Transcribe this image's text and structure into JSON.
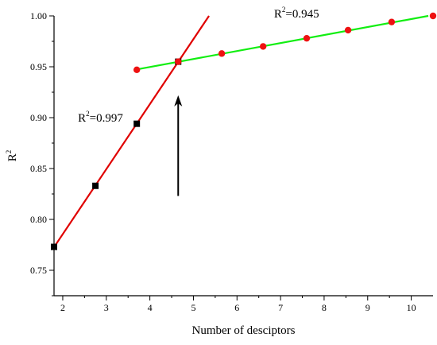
{
  "chart_data": {
    "type": "scatter",
    "xlabel": "Number of desciptors",
    "ylabel_base": "R",
    "ylabel_sup": "2",
    "xlim": [
      1.8,
      10.5
    ],
    "ylim": [
      0.725,
      1.0
    ],
    "xticks": [
      2,
      3,
      4,
      5,
      6,
      7,
      8,
      9,
      10
    ],
    "xtick_labels": [
      "2",
      "3",
      "4",
      "5",
      "6",
      "7",
      "8",
      "9",
      "10"
    ],
    "yticks": [
      0.75,
      0.8,
      0.85,
      0.9,
      0.95,
      1.0
    ],
    "ytick_labels": [
      "0.75",
      "0.80",
      "0.85",
      "0.90",
      "0.95",
      "1.00"
    ],
    "grid": false,
    "series": [
      {
        "marker": "square",
        "color": "#000000",
        "line_color": "#e00000",
        "x": [
          1.8,
          2.75,
          3.7,
          4.65
        ],
        "y": [
          0.773,
          0.833,
          0.894,
          0.955
        ],
        "fit_x": [
          1.8,
          5.4
        ]
      },
      {
        "marker": "circle",
        "color": "#ee1111",
        "line_color": "#11ee11",
        "x": [
          3.7,
          4.65,
          5.65,
          6.6,
          7.6,
          8.55,
          9.55,
          10.5
        ],
        "y": [
          0.947,
          0.955,
          0.963,
          0.97,
          0.978,
          0.986,
          0.994,
          1.0
        ],
        "fit_x": [
          3.7,
          10.5
        ]
      }
    ],
    "annotations": [
      {
        "id": "red",
        "base": "R",
        "sup": "2",
        "value": "=0.997",
        "x": 2.35,
        "y": 0.9
      },
      {
        "id": "green",
        "base": "R",
        "sup": "2",
        "value": "=0.945",
        "x": 6.85,
        "y": 1.0
      }
    ],
    "arrow": {
      "x": 4.65,
      "y_from": 0.823,
      "y_to": 0.922,
      "color": "#000000"
    }
  }
}
